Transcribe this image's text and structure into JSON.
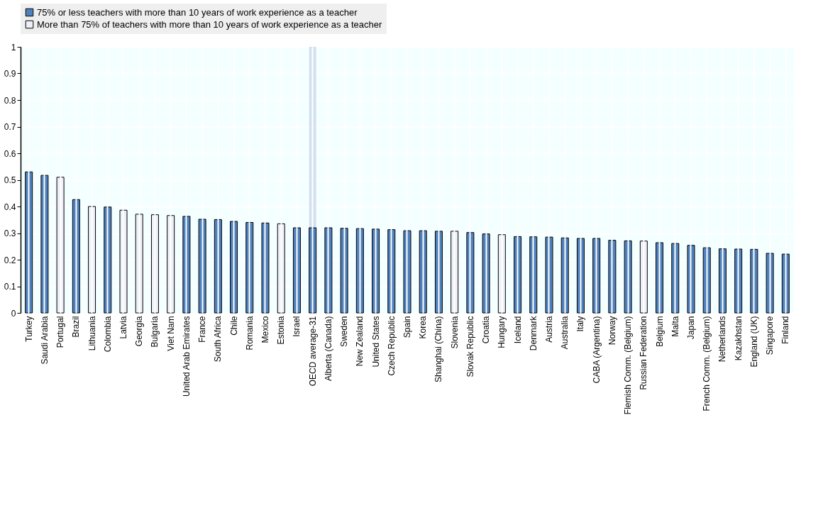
{
  "chart_data": {
    "type": "bar",
    "categories": [
      "Turkey",
      "Saudi Arabia",
      "Portugal",
      "Brazil",
      "Lithuania",
      "Colombia",
      "Latvia",
      "Georgia",
      "Bulgaria",
      "Viet Nam",
      "United Arab Emirates",
      "France",
      "South Africa",
      "Chile",
      "Romania",
      "Mexico",
      "Estonia",
      "Israel",
      "OECD average-31",
      "Alberta (Canada)",
      "Sweden",
      "New Zealand",
      "United States",
      "Czech Republic",
      "Spain",
      "Korea",
      "Shanghai (China)",
      "Slovenia",
      "Slovak Republic",
      "Croatia",
      "Hungary",
      "Iceland",
      "Denmark",
      "Austria",
      "Australia",
      "Italy",
      "CABA (Argentina)",
      "Norway",
      "Flemish Comm. (Belgium)",
      "Russian Federation",
      "Belgium",
      "Malta",
      "Japan",
      "French Comm. (Belgium)",
      "Netherlands",
      "Kazakhstan",
      "England (UK)",
      "Singapore",
      "Finland"
    ],
    "series": [
      {
        "name": "75% or less teachers with more than 10 years of work experience as a teacher",
        "color": "#4f81bd",
        "values": [
          0.53,
          0.517,
          null,
          0.426,
          null,
          0.398,
          null,
          null,
          null,
          null,
          0.363,
          0.352,
          0.351,
          0.344,
          0.34,
          0.338,
          null,
          0.32,
          0.32,
          0.32,
          0.318,
          0.317,
          0.315,
          0.313,
          0.309,
          0.309,
          0.307,
          null,
          0.302,
          0.297,
          null,
          0.287,
          0.286,
          0.285,
          0.282,
          0.28,
          0.28,
          0.273,
          0.271,
          null,
          0.264,
          0.261,
          0.254,
          0.245,
          0.241,
          0.24,
          0.239,
          0.224,
          0.221
        ]
      },
      {
        "name": "More than 75% of teachers with more than 10 years of work experience as a teacher",
        "color": "#eef0f8",
        "values": [
          null,
          null,
          0.51,
          null,
          0.4,
          null,
          0.386,
          0.371,
          0.369,
          0.366,
          null,
          null,
          null,
          null,
          null,
          null,
          0.335,
          null,
          null,
          null,
          null,
          null,
          null,
          null,
          null,
          null,
          null,
          0.307,
          null,
          null,
          0.294,
          null,
          null,
          null,
          null,
          null,
          null,
          null,
          null,
          0.27,
          null,
          null,
          null,
          null,
          null,
          null,
          null,
          null,
          null
        ]
      }
    ],
    "ylim": [
      0,
      1
    ],
    "yticks": [
      0,
      0.1,
      0.2,
      0.3,
      0.4,
      0.5,
      0.6,
      0.7,
      0.8,
      0.9,
      1
    ],
    "bands": [
      {
        "axis": "x",
        "from": "OECD average-31",
        "to": "OECD average-31",
        "color": "#d3e1ef"
      }
    ],
    "grid": true,
    "legend": "top"
  }
}
